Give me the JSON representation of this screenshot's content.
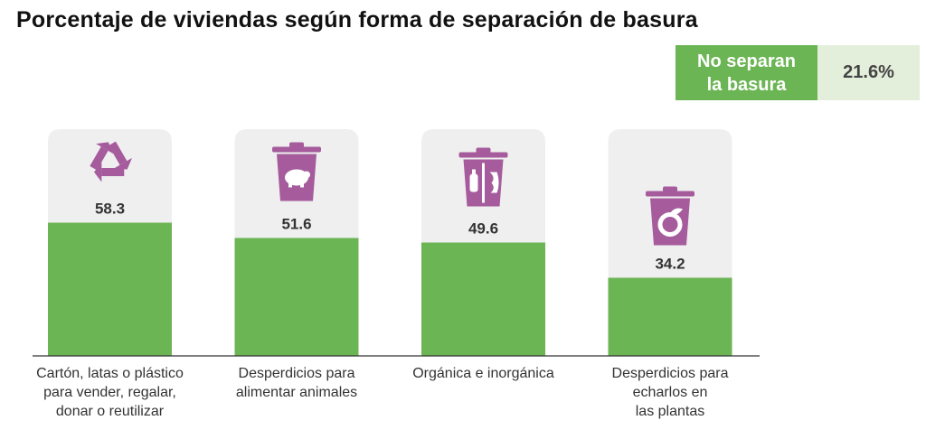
{
  "chart_data": {
    "type": "bar",
    "title": "Porcentaje de viviendas según forma de separación de basura",
    "categories": [
      "Cartón, latas o plástico\npara vender, regalar,\ndonar o reutilizar",
      "Desperdicios para\nalimentar animales",
      "Orgánica e inorgánica",
      "Desperdicios para\necharlos en\nlas plantas"
    ],
    "values": [
      58.3,
      51.6,
      49.6,
      34.2
    ],
    "value_labels": [
      "58.3",
      "51.6",
      "49.6",
      "34.2"
    ],
    "icons": [
      "recycle-icon",
      "piggy-bank-bin-icon",
      "split-bin-icon",
      "compost-bin-icon"
    ],
    "ylim": [
      0,
      100
    ],
    "xlabel": "",
    "ylabel": "",
    "grid": false
  },
  "highlight": {
    "label": "No separan\nla basura",
    "value": "21.6%"
  },
  "colors": {
    "bar": "#6cb554",
    "bar_background": "#efefef",
    "icon": "#a55b9c",
    "axis": "#333333",
    "highlight_label_bg": "#6cb554",
    "highlight_value_bg": "#e3efdb"
  }
}
